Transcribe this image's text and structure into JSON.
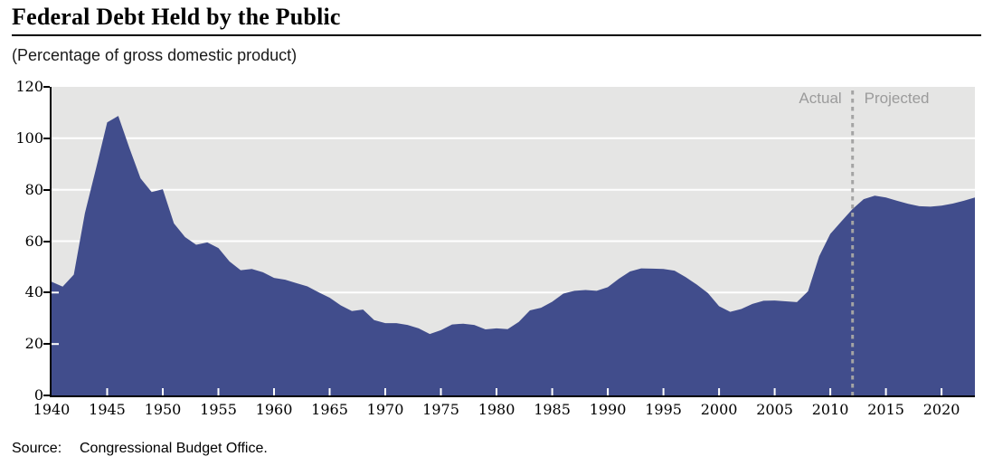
{
  "header": {
    "title": "Federal Debt Held by the Public",
    "subtitle": "(Percentage of gross domestic product)"
  },
  "footer": {
    "source_label": "Source:",
    "source_text": "Congressional Budget Office."
  },
  "colors": {
    "area_fill": "#414d8c",
    "plot_background": "#e5e5e4",
    "gridline": "#ffffff",
    "axis": "#000000",
    "divider": "#a4a4a4",
    "annotation_text": "#9b9b9b"
  },
  "chart_data": {
    "type": "area",
    "title": "Federal Debt Held by the Public",
    "subtitle": "(Percentage of gross domestic product)",
    "xlabel": "",
    "ylabel": "Percentage of gross domestic product",
    "xlim": [
      1940,
      2023
    ],
    "ylim": [
      0,
      120
    ],
    "x_ticks": [
      1940,
      1945,
      1950,
      1955,
      1960,
      1965,
      1970,
      1975,
      1980,
      1985,
      1990,
      1995,
      2000,
      2005,
      2010,
      2015,
      2020
    ],
    "y_ticks": [
      0,
      20,
      40,
      60,
      80,
      100,
      120
    ],
    "grid": "horizontal-white",
    "legend": "none",
    "divider_year": 2012,
    "annotations": {
      "actual": "Actual",
      "projected": "Projected"
    },
    "series": [
      {
        "name": "Federal debt held by the public (% of GDP)",
        "x_start": 1940,
        "x_step": 1,
        "values": [
          44.2,
          42.3,
          47.0,
          70.9,
          88.3,
          106.2,
          108.7,
          96.2,
          84.4,
          79.1,
          80.2,
          66.9,
          61.6,
          58.6,
          59.5,
          57.3,
          52.1,
          48.7,
          49.2,
          47.9,
          45.7,
          45.0,
          43.7,
          42.4,
          40.1,
          38.0,
          35.0,
          32.8,
          33.4,
          29.3,
          28.1,
          28.1,
          27.4,
          26.1,
          23.9,
          25.4,
          27.6,
          27.9,
          27.4,
          25.7,
          26.1,
          25.8,
          28.6,
          33.1,
          34.1,
          36.4,
          39.6,
          40.7,
          41.0,
          40.7,
          42.1,
          45.4,
          48.2,
          49.4,
          49.3,
          49.2,
          48.5,
          46.0,
          43.1,
          39.8,
          34.7,
          32.5,
          33.6,
          35.6,
          36.8,
          36.9,
          36.6,
          36.3,
          40.5,
          54.1,
          62.8,
          67.7,
          72.5,
          76.3,
          77.7,
          77.0,
          75.7,
          74.5,
          73.6,
          73.4,
          73.8,
          74.6,
          75.7,
          77.0
        ]
      }
    ]
  }
}
